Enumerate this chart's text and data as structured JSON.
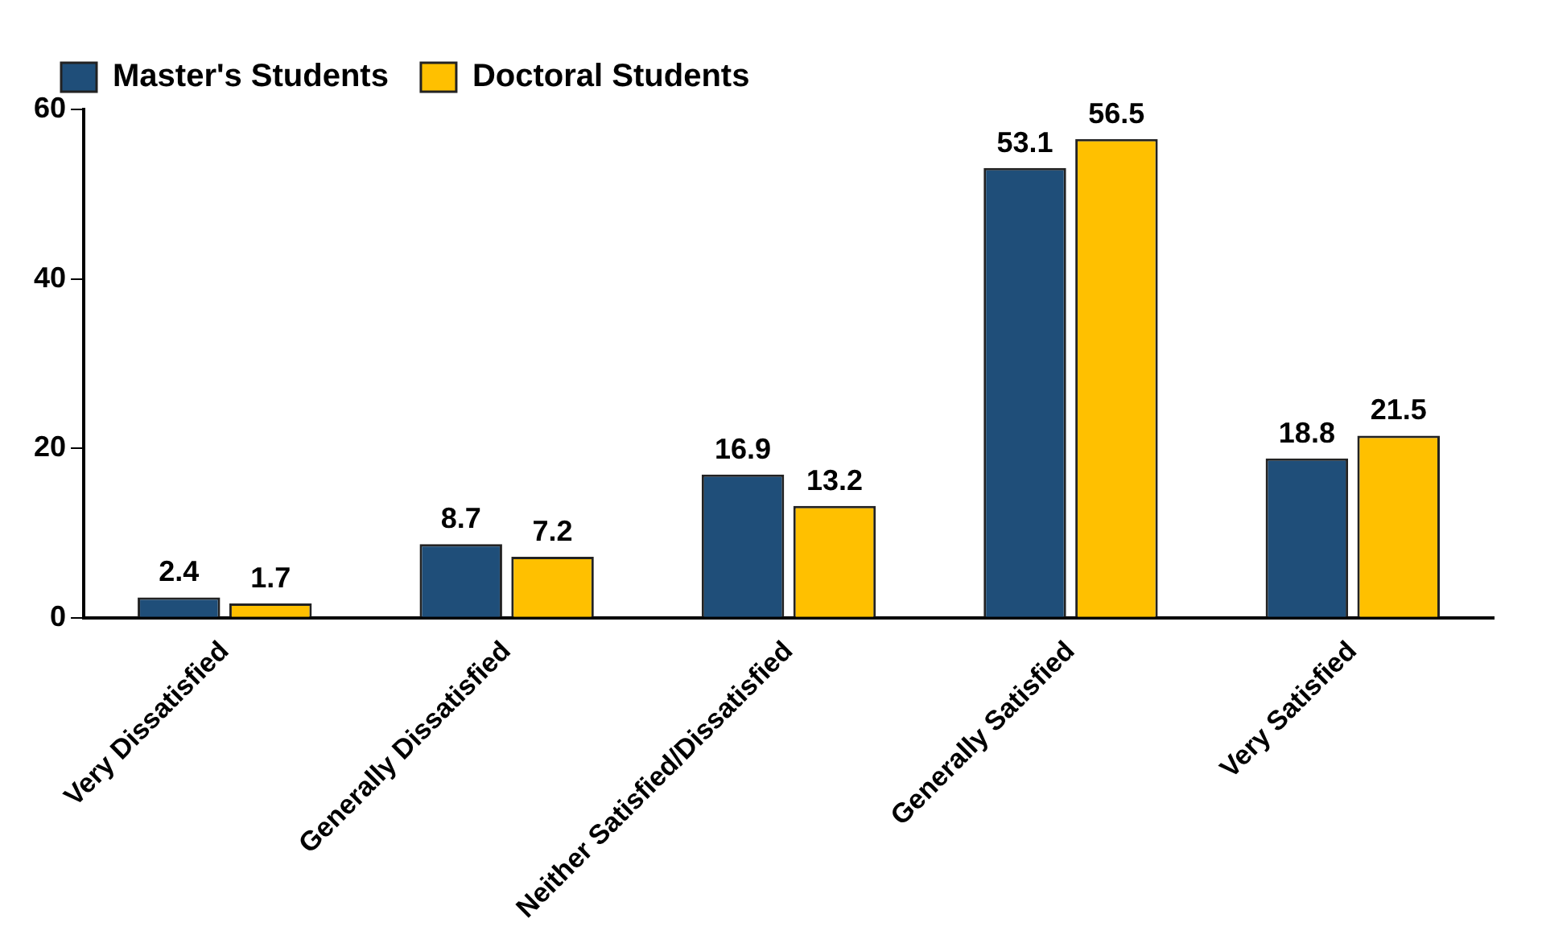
{
  "chart_data": {
    "type": "bar",
    "categories": [
      "Very Dissatisfied",
      "Generally Dissatisfied",
      "Neither Satisfied/Dissatisfied",
      "Generally Satisfied",
      "Very Satisfied"
    ],
    "series": [
      {
        "name": "Master's Students",
        "color": "#1f4e79",
        "values": [
          2.4,
          8.7,
          16.9,
          53.1,
          18.8
        ]
      },
      {
        "name": "Doctoral Students",
        "color": "#ffc000",
        "values": [
          1.7,
          7.2,
          13.2,
          56.5,
          21.5
        ]
      }
    ],
    "ylim": [
      0,
      60
    ],
    "yticks": [
      0,
      20,
      40,
      60
    ],
    "grid": false,
    "legend": "top left",
    "data_labels": true
  }
}
